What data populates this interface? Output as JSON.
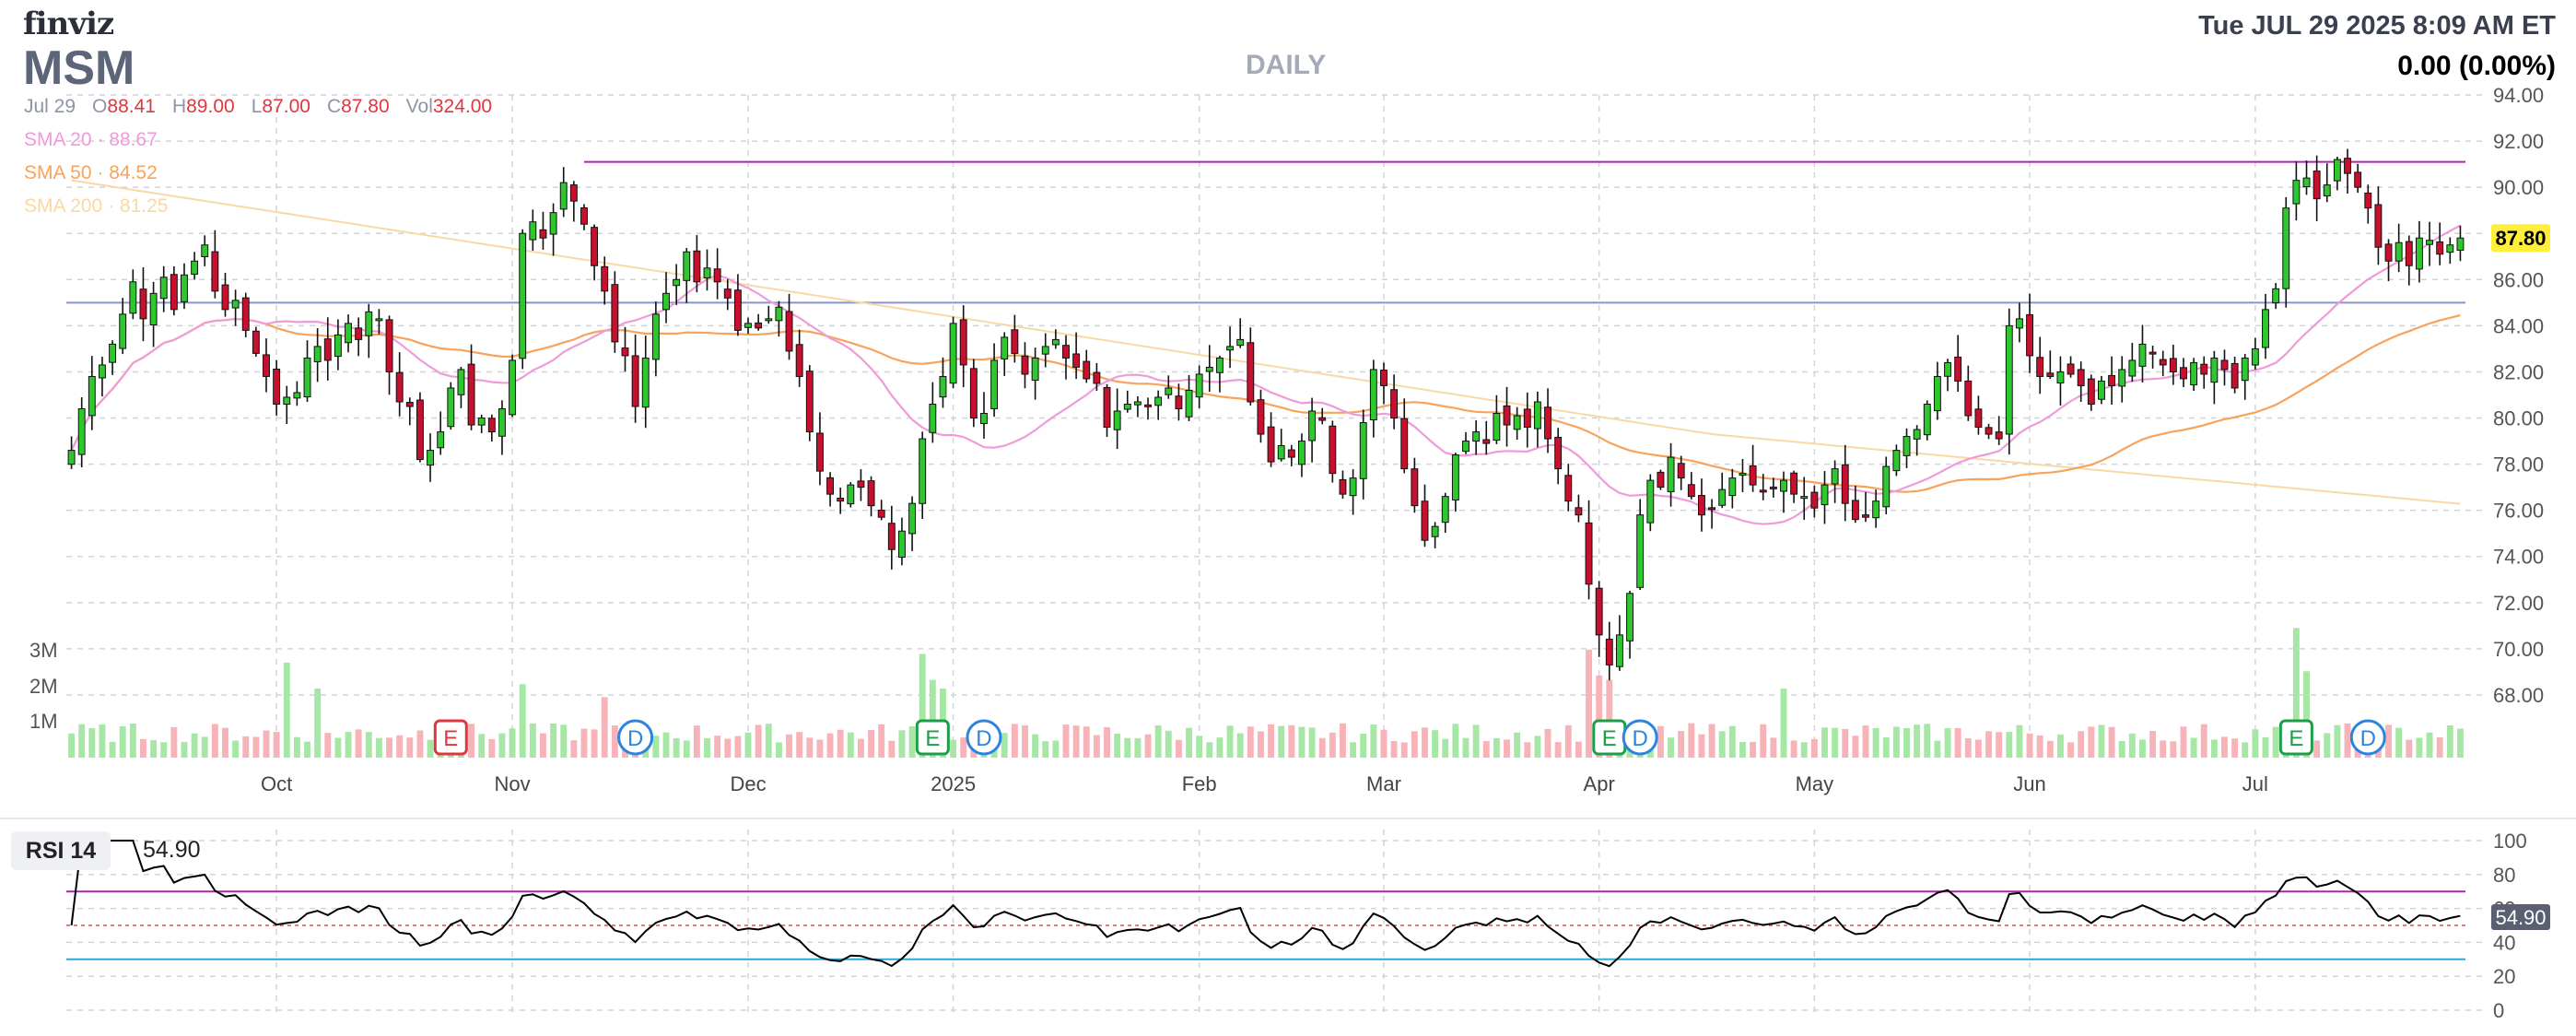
{
  "header": {
    "logo": "finviz",
    "ticker": "MSM",
    "period": "DAILY",
    "datetime": "Tue JUL 29 2025 8:09 AM ET",
    "change": "0.00 (0.00%)"
  },
  "ohlc": {
    "date": "Jul 29",
    "open_label": "O",
    "open": "88.41",
    "high_label": "H",
    "high": "89.00",
    "low_label": "L",
    "low": "87.00",
    "close_label": "C",
    "close": "87.80",
    "vol_label": "Vol",
    "vol": "324.00"
  },
  "sma": [
    {
      "name": "SMA 20",
      "value": "88.67",
      "color": "#ef9bd9"
    },
    {
      "name": "SMA 50",
      "value": "84.52",
      "color": "#f7a35c"
    },
    {
      "name": "SMA 200",
      "value": "81.25",
      "color": "#f8d9a6"
    }
  ],
  "rsi": {
    "label": "RSI 14",
    "value": "54.90",
    "axis_value": "54.90"
  },
  "colors": {
    "up": "#2fc72f",
    "down": "#c8102e",
    "up_vol": "#a6e7a6",
    "down_vol": "#f7b3b7",
    "grid": "#d0d4dc",
    "resist": "#b022b0",
    "support": "#8a94c8",
    "badge_e_red": "#e0373f",
    "badge_e_green": "#1e9e4a",
    "badge_d": "#2b84e0",
    "price_tag": "#ffef3a"
  },
  "chart_data": [
    {
      "type": "candlestick",
      "title": "MSM",
      "ylim": [
        67,
        94
      ],
      "y_ticks": [
        "94.00",
        "92.00",
        "90.00",
        "88.00",
        "86.00",
        "84.00",
        "82.00",
        "80.00",
        "78.00",
        "76.00",
        "74.00",
        "72.00",
        "70.00",
        "68.00"
      ],
      "x_ticks": [
        "Oct",
        "Nov",
        "Dec",
        "2025",
        "Feb",
        "Mar",
        "Apr",
        "May",
        "Jun",
        "Jul"
      ],
      "last_price_label": "87.80",
      "volume_ticks": [
        "3M",
        "2M",
        "1M"
      ],
      "horizontal_lines": [
        91.1,
        85.0
      ],
      "events": [
        {
          "label": "E",
          "x": "Oct 23",
          "style": "red"
        },
        {
          "label": "D",
          "x": "Nov 8",
          "style": "blue"
        },
        {
          "label": "E",
          "x": "Jan 8",
          "style": "green"
        },
        {
          "label": "D",
          "x": "Jan 11",
          "style": "blue"
        },
        {
          "label": "E",
          "x": "Apr 1",
          "style": "green"
        },
        {
          "label": "D",
          "x": "Apr 3",
          "style": "blue"
        },
        {
          "label": "E",
          "x": "Jul 1",
          "style": "green"
        },
        {
          "label": "D",
          "x": "Jul 8",
          "style": "blue"
        }
      ],
      "closes": [
        78.6,
        80.4,
        81.8,
        82.3,
        83.2,
        84.5,
        85.9,
        84.3,
        85.4,
        86.1,
        84.7,
        86.2,
        86.8,
        87.5,
        85.5,
        84.7,
        85.1,
        83.8,
        82.8,
        81.8,
        80.6,
        80.9,
        81.1,
        82.6,
        83.1,
        82.5,
        83.6,
        84.1,
        83.4,
        84.6,
        84.3,
        82.0,
        80.7,
        80.5,
        78.2,
        78.6,
        79.4,
        81.3,
        82.1,
        79.7,
        80.0,
        79.4,
        80.4,
        82.5,
        88.0,
        88.5,
        87.8,
        88.9,
        90.2,
        89.4,
        88.4,
        86.6,
        85.5,
        83.3,
        82.7,
        80.5,
        82.6,
        84.5,
        85.4,
        86.0,
        87.2,
        85.9,
        86.5,
        85.9,
        85.2,
        83.8,
        84.1,
        83.9,
        84.3,
        84.8,
        82.9,
        81.8,
        79.4,
        77.7,
        76.7,
        76.4,
        77.1,
        77.0,
        76.2,
        75.7,
        74.3,
        75.1,
        76.3,
        79.1,
        80.6,
        81.8,
        84.1,
        82.3,
        80.0,
        80.2,
        82.5,
        83.5,
        82.8,
        81.9,
        82.6,
        83.1,
        83.4,
        82.6,
        82.2,
        81.7,
        81.5,
        79.6,
        80.3,
        80.6,
        80.7,
        80.5,
        80.9,
        81.3,
        80.4,
        81.2,
        81.9,
        82.2,
        82.6,
        83.1,
        83.4,
        80.7,
        79.3,
        78.1,
        78.8,
        78.3,
        79.0,
        80.3,
        79.9,
        77.6,
        76.7,
        77.4,
        79.8,
        82.1,
        81.4,
        80.0,
        77.8,
        76.2,
        74.7,
        75.3,
        76.6,
        78.4,
        79.0,
        79.4,
        78.9,
        80.2,
        79.7,
        80.1,
        79.6,
        80.7,
        79.1,
        77.8,
        76.4,
        75.8,
        72.8,
        70.6,
        69.3,
        70.6,
        72.4,
        75.8,
        77.3,
        77.0,
        78.3,
        77.4,
        76.6,
        75.8,
        76.1,
        76.9,
        77.4,
        77.6,
        77.1,
        76.8,
        77.0,
        77.3,
        76.7,
        76.6,
        76.1,
        77.1,
        77.8,
        76.3,
        75.6,
        75.7,
        76.4,
        77.9,
        78.6,
        79.2,
        79.5,
        80.6,
        81.8,
        82.4,
        81.6,
        80.1,
        79.6,
        79.3,
        79.1,
        84.0,
        84.3,
        82.7,
        81.8,
        81.8,
        82.0,
        81.9,
        81.4,
        80.6,
        81.6,
        81.4,
        82.1,
        82.5,
        83.2,
        82.8,
        82.3,
        82.0,
        81.7,
        82.4,
        81.9,
        82.6,
        82.1,
        81.3,
        82.6,
        83.0,
        84.7,
        85.6,
        89.1,
        90.3,
        90.4,
        89.5,
        90.1,
        91.2,
        90.6,
        90.0,
        89.1,
        87.4,
        86.8,
        87.6,
        86.6,
        87.8,
        87.7,
        87.1,
        87.5,
        87.8
      ]
    },
    {
      "type": "line",
      "title": "RSI 14",
      "ylim": [
        0,
        100
      ],
      "y_ticks": [
        "100",
        "80",
        "60",
        "40",
        "20",
        "0"
      ],
      "overbought": 70,
      "oversold": 30,
      "last_value": 54.9
    }
  ]
}
